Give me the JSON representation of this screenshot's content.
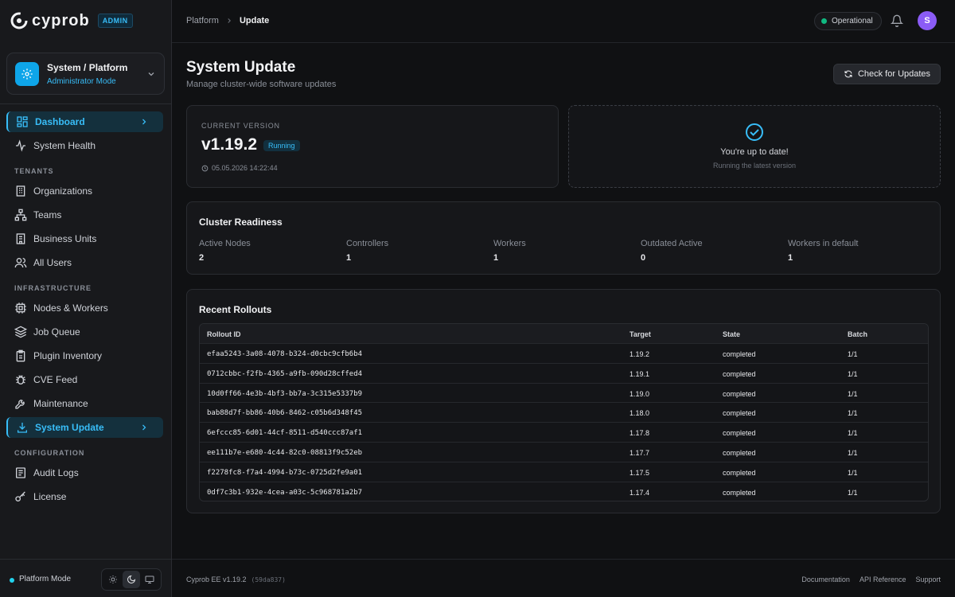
{
  "brand": {
    "name": "cyprob",
    "badge": "ADMIN"
  },
  "context": {
    "title": "System / Platform",
    "subtitle": "Administrator Mode"
  },
  "nav": {
    "dashboard": "Dashboard",
    "system_health": "System Health",
    "tenants_header": "TENANTS",
    "organizations": "Organizations",
    "teams": "Teams",
    "business_units": "Business Units",
    "all_users": "All Users",
    "infra_header": "INFRASTRUCTURE",
    "nodes_workers": "Nodes & Workers",
    "job_queue": "Job Queue",
    "plugin_inventory": "Plugin Inventory",
    "cve_feed": "CVE Feed",
    "maintenance": "Maintenance",
    "system_update": "System Update",
    "config_header": "CONFIGURATION",
    "audit_logs": "Audit Logs",
    "license": "License"
  },
  "sidebar_footer": {
    "mode_label": "Platform Mode"
  },
  "breadcrumb": {
    "parent": "Platform",
    "current": "Update"
  },
  "header": {
    "status": "Operational",
    "avatar_initial": "S"
  },
  "page": {
    "title": "System Update",
    "subtitle": "Manage cluster-wide software updates",
    "check_button": "Check for Updates"
  },
  "current_version": {
    "label": "CURRENT VERSION",
    "version": "v1.19.2",
    "state": "Running",
    "timestamp": "05.05.2026 14:22:44"
  },
  "up_to_date": {
    "title": "You're up to date!",
    "subtitle": "Running the latest version"
  },
  "readiness": {
    "title": "Cluster Readiness",
    "stats": [
      {
        "label": "Active Nodes",
        "value": "2"
      },
      {
        "label": "Controllers",
        "value": "1"
      },
      {
        "label": "Workers",
        "value": "1"
      },
      {
        "label": "Outdated Active",
        "value": "0"
      },
      {
        "label": "Workers in default",
        "value": "1"
      }
    ]
  },
  "rollouts": {
    "title": "Recent Rollouts",
    "columns": [
      "Rollout ID",
      "Target",
      "State",
      "Batch"
    ],
    "rows": [
      [
        "efaa5243-3a08-4078-b324-d0cbc9cfb6b4",
        "1.19.2",
        "completed",
        "1/1"
      ],
      [
        "0712cbbc-f2fb-4365-a9fb-090d28cffed4",
        "1.19.1",
        "completed",
        "1/1"
      ],
      [
        "10d0ff66-4e3b-4bf3-bb7a-3c315e5337b9",
        "1.19.0",
        "completed",
        "1/1"
      ],
      [
        "bab88d7f-bb86-40b6-8462-c05b6d348f45",
        "1.18.0",
        "completed",
        "1/1"
      ],
      [
        "6efccc85-6d01-44cf-8511-d540ccc87af1",
        "1.17.8",
        "completed",
        "1/1"
      ],
      [
        "ee111b7e-e680-4c44-82c0-08813f9c52eb",
        "1.17.7",
        "completed",
        "1/1"
      ],
      [
        "f2278fc8-f7a4-4994-b73c-0725d2fe9a01",
        "1.17.5",
        "completed",
        "1/1"
      ],
      [
        "0df7c3b1-932e-4cea-a03c-5c968781a2b7",
        "1.17.4",
        "completed",
        "1/1"
      ]
    ]
  },
  "footer": {
    "version": "Cyprob EE v1.19.2",
    "hash": "(59da837)",
    "links": [
      "Documentation",
      "API Reference",
      "Support"
    ]
  }
}
